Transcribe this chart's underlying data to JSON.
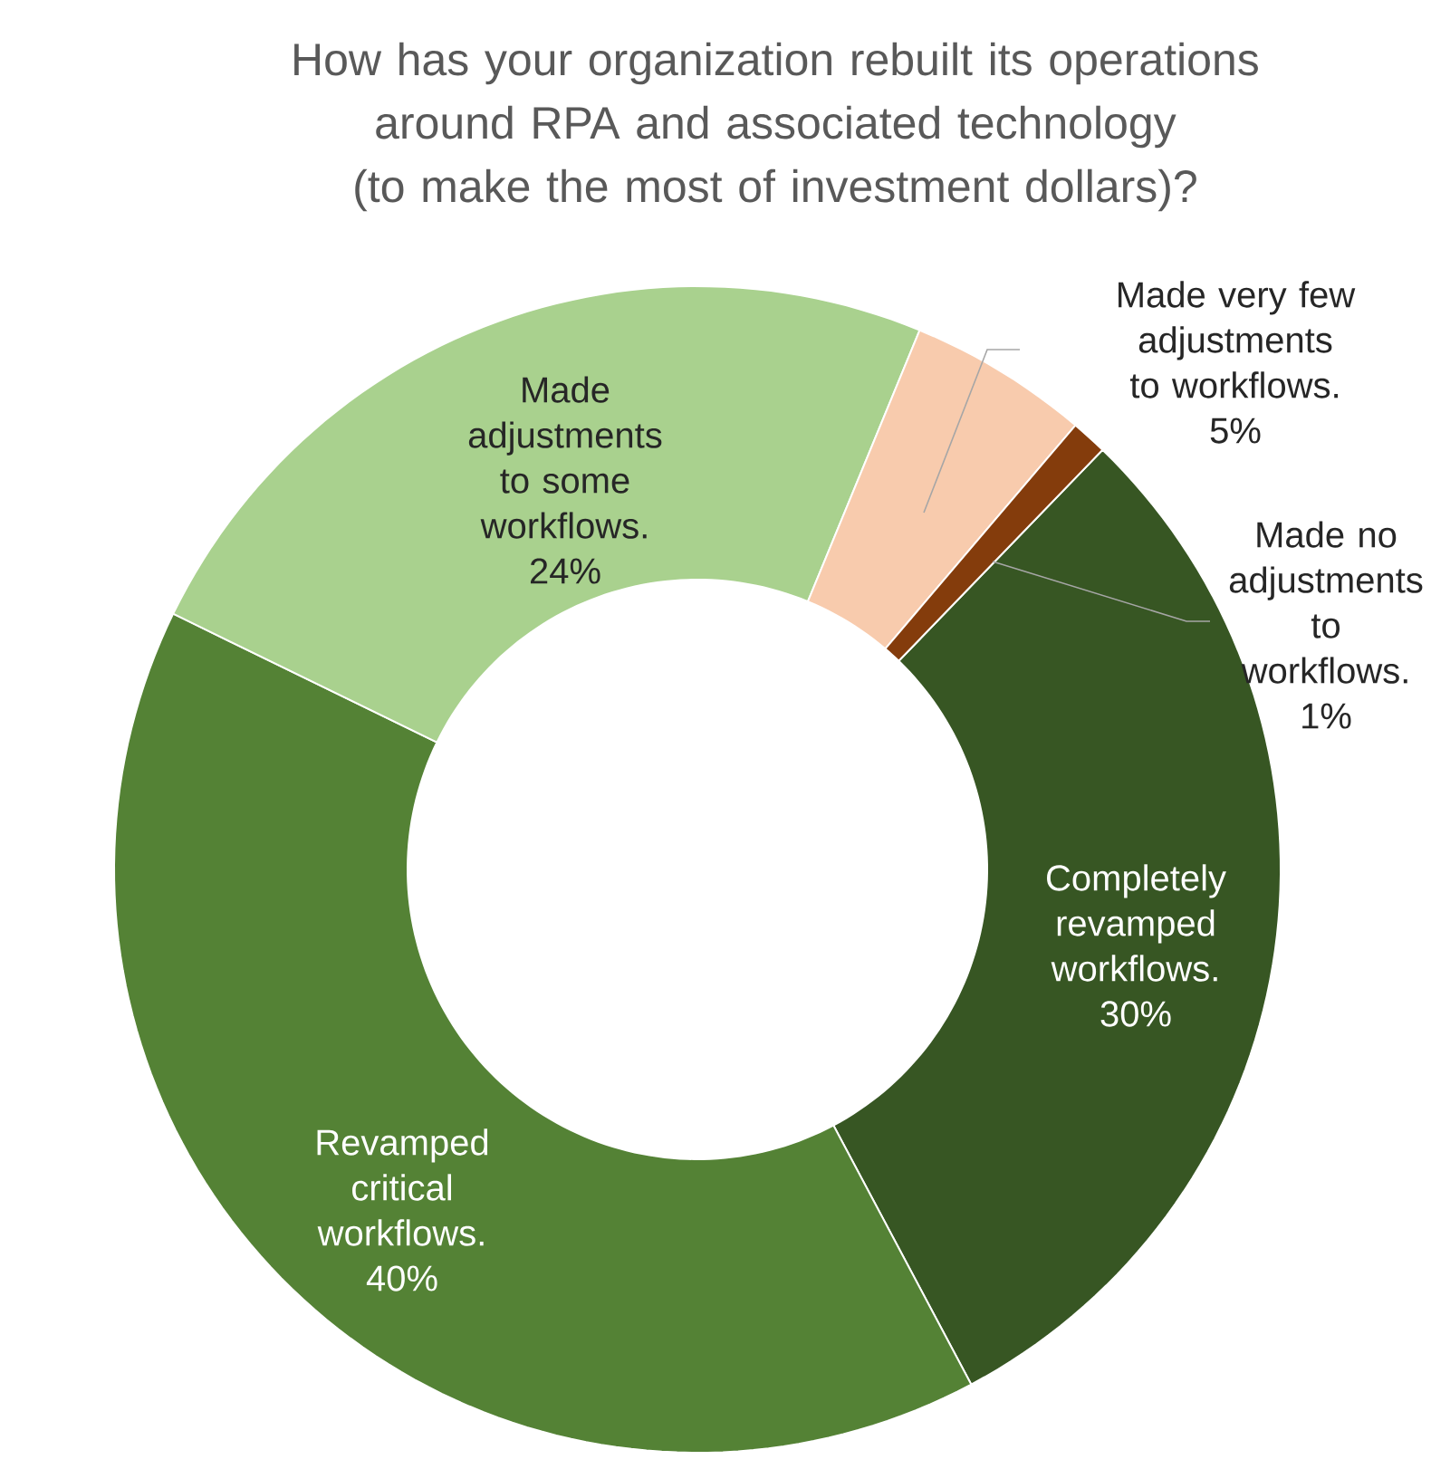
{
  "chart_data": {
    "type": "donut",
    "title": "How has your organization rebuilt its operations around RPA and associated technology (to make the most of investment dollars)?",
    "categories": [
      "Completely revamped workflows.",
      "Revamped critical workflows.",
      "Made adjustments to some workflows.",
      "Made very few adjustments to workflows.",
      "Made no adjustments to workflows."
    ],
    "values": [
      30,
      40,
      24,
      5,
      1
    ],
    "colors": [
      "#375623",
      "#548235",
      "#a9d18e",
      "#f8cbad",
      "#843c0c"
    ],
    "value_labels": [
      "30%",
      "40%",
      "24%",
      "5%",
      "1%"
    ]
  }
}
